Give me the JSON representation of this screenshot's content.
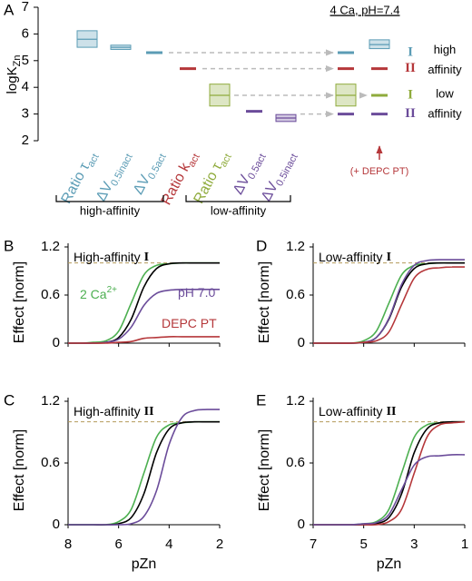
{
  "chart_data": [
    {
      "type": "box",
      "letter": "A",
      "ylabel": "logK",
      "ylabel_sub": "Zn",
      "ylim": [
        2,
        7
      ],
      "yticks": [
        2,
        3,
        4,
        5,
        6,
        7
      ],
      "items": [
        {
          "label": "Ratio τ",
          "sub": "act",
          "color": "#5b9cb5",
          "value": 5.8,
          "low": 5.5,
          "high": 6.12
        },
        {
          "label": "ΔV",
          "sub": "0.5inact",
          "color": "#5b9cb5",
          "value": 5.5,
          "low": 5.42,
          "high": 5.58
        },
        {
          "label": "ΔV",
          "sub": "0.5act",
          "color": "#5b9cb5",
          "value": 5.3
        },
        {
          "label": "Ratio k",
          "sub": "act",
          "color": "#b5373a",
          "value": 4.7
        },
        {
          "label": "Ratio τ",
          "sub": "act",
          "color": "#8fab3c",
          "value": 3.7,
          "low": 3.3,
          "high": 4.12
        },
        {
          "label": "ΔV",
          "sub": "0.5act",
          "color": "#6b4c9a",
          "value": 3.1
        },
        {
          "label": "ΔV",
          "sub": "0.5inact",
          "color": "#6b4c9a",
          "value": 2.85,
          "low": 2.72,
          "high": 2.98
        }
      ],
      "brackets": [
        "high-affinity",
        "low-affinity"
      ],
      "header": "4 Ca, pH=7.4",
      "rows": [
        {
          "numeral": "I",
          "color": "#5b9cb5"
        },
        {
          "numeral": "II",
          "color": "#b5373a"
        },
        {
          "numeral": "I",
          "color": "#8fab3c"
        },
        {
          "numeral": "II",
          "color": "#6b4c9a"
        }
      ],
      "row_groups": [
        [
          "high",
          "affinity"
        ],
        [
          "low",
          "affinity"
        ]
      ],
      "summary": [
        {
          "values": [
            5.3,
            4.7,
            3.7,
            3.0
          ],
          "low": [
            null,
            null,
            3.3,
            null
          ],
          "high": [
            null,
            null,
            4.12,
            null
          ]
        },
        {
          "values": [
            5.6,
            4.7,
            3.7,
            3.0
          ],
          "low": [
            5.45,
            null,
            null,
            null
          ],
          "high": [
            5.78,
            null,
            null,
            null
          ],
          "annotation": "(+ DEPC PT)"
        }
      ]
    },
    {
      "type": "line",
      "letter": "B",
      "title": "High-affinity",
      "title_numeral": "I",
      "ylabel": "Effect [norm]",
      "xlim": [
        8,
        2
      ],
      "xticks": [
        8,
        6,
        4,
        2
      ],
      "ylim": [
        0,
        1.2
      ],
      "yticks": [
        0,
        0.6,
        1.2
      ],
      "reference": 1,
      "x": [
        8,
        7.5,
        7,
        6.5,
        6,
        5.5,
        5,
        4.5,
        4,
        3.5,
        3,
        2.5,
        2
      ],
      "series": [
        {
          "color": "#4caf50",
          "values": [
            0,
            0,
            0.01,
            0.03,
            0.15,
            0.5,
            0.85,
            0.97,
            0.99,
            1,
            1,
            1,
            1
          ]
        },
        {
          "color": "#000000",
          "values": [
            0,
            0,
            0,
            0.01,
            0.07,
            0.3,
            0.7,
            0.93,
            0.99,
            1,
            1,
            1,
            1
          ]
        },
        {
          "color": "#6b4c9a",
          "values": [
            0,
            0,
            0,
            0.01,
            0.05,
            0.2,
            0.47,
            0.62,
            0.66,
            0.67,
            0.67,
            0.67,
            0.67
          ]
        },
        {
          "color": "#b5373a",
          "values": [
            0,
            0,
            0,
            0,
            0.01,
            0.02,
            0.06,
            0.07,
            0.08,
            0.08,
            0.08,
            0.08,
            0.08
          ]
        }
      ],
      "annotations": [
        {
          "text": "2 Ca",
          "sup": "2+",
          "color": "#4caf50"
        },
        {
          "text": "pH 7.0",
          "color": "#6b4c9a"
        },
        {
          "text": "DEPC PT",
          "color": "#b5373a"
        }
      ]
    },
    {
      "type": "line",
      "letter": "C",
      "title": "High-affinity",
      "title_numeral": "II",
      "ylabel": "Effect [norm]",
      "xlabel": "pZn",
      "xlim": [
        8,
        2
      ],
      "xticks": [
        8,
        6,
        4,
        2
      ],
      "ylim": [
        0,
        1.2
      ],
      "yticks": [
        0,
        0.6,
        1.2
      ],
      "reference": 1,
      "x": [
        8,
        7.5,
        7,
        6.5,
        6,
        5.5,
        5,
        4.5,
        4,
        3.5,
        3,
        2.5,
        2
      ],
      "series": [
        {
          "color": "#4caf50",
          "values": [
            0,
            0,
            0,
            0,
            0.03,
            0.15,
            0.5,
            0.85,
            0.97,
            0.99,
            1,
            1,
            1
          ]
        },
        {
          "color": "#000000",
          "values": [
            0,
            0,
            0,
            0,
            0.01,
            0.07,
            0.3,
            0.7,
            0.93,
            0.99,
            1,
            1,
            1
          ]
        },
        {
          "color": "#6b4c9a",
          "values": [
            0,
            0,
            0,
            0,
            0,
            0.01,
            0.08,
            0.33,
            0.78,
            1.04,
            1.11,
            1.12,
            1.12
          ]
        }
      ]
    },
    {
      "type": "line",
      "letter": "D",
      "title": "Low-affinity",
      "title_numeral": "I",
      "ylabel": "Effect [norm]",
      "xlim": [
        7,
        1
      ],
      "xticks": [
        7,
        5,
        3,
        1
      ],
      "ylim": [
        0,
        1.2
      ],
      "yticks": [
        0,
        0.6,
        1.2
      ],
      "reference": 1,
      "x": [
        7,
        6.5,
        6,
        5.5,
        5,
        4.5,
        4,
        3.5,
        3,
        2.5,
        2,
        1.5,
        1
      ],
      "series": [
        {
          "color": "#4caf50",
          "values": [
            0,
            0,
            0,
            0,
            0.03,
            0.15,
            0.5,
            0.85,
            0.97,
            0.99,
            1,
            1,
            1
          ]
        },
        {
          "color": "#000000",
          "values": [
            0,
            0,
            0,
            0,
            0.01,
            0.07,
            0.3,
            0.7,
            0.93,
            0.99,
            1,
            1,
            1
          ]
        },
        {
          "color": "#6b4c9a",
          "values": [
            0,
            0,
            0,
            0,
            0.01,
            0.07,
            0.31,
            0.73,
            0.97,
            1.03,
            1.04,
            1.04,
            1.04
          ]
        },
        {
          "color": "#b5373a",
          "values": [
            0,
            0,
            0,
            0,
            0.01,
            0.03,
            0.14,
            0.48,
            0.81,
            0.92,
            0.94,
            0.95,
            0.95
          ]
        }
      ]
    },
    {
      "type": "line",
      "letter": "E",
      "title": "Low-affinity",
      "title_numeral": "II",
      "ylabel": "Effect [norm]",
      "xlabel": "pZn",
      "xlim": [
        7,
        1
      ],
      "xticks": [
        7,
        5,
        3,
        1
      ],
      "ylim": [
        0,
        1.2
      ],
      "yticks": [
        0,
        0.6,
        1.2
      ],
      "reference": 1,
      "x": [
        7,
        6.5,
        6,
        5.5,
        5,
        4.5,
        4,
        3.5,
        3,
        2.5,
        2,
        1.5,
        1
      ],
      "series": [
        {
          "color": "#4caf50",
          "values": [
            0,
            0,
            0,
            0,
            0.01,
            0.03,
            0.15,
            0.5,
            0.85,
            0.97,
            0.99,
            1,
            1
          ]
        },
        {
          "color": "#000000",
          "values": [
            0,
            0,
            0,
            0,
            0,
            0.01,
            0.07,
            0.3,
            0.7,
            0.93,
            0.99,
            1,
            1
          ]
        },
        {
          "color": "#b5373a",
          "values": [
            0,
            0,
            0,
            0,
            0,
            0,
            0.03,
            0.15,
            0.5,
            0.85,
            0.97,
            0.99,
            1
          ]
        },
        {
          "color": "#6b4c9a",
          "values": [
            0,
            0,
            0,
            0,
            0.01,
            0.02,
            0.1,
            0.34,
            0.58,
            0.66,
            0.67,
            0.68,
            0.68
          ]
        }
      ]
    }
  ]
}
